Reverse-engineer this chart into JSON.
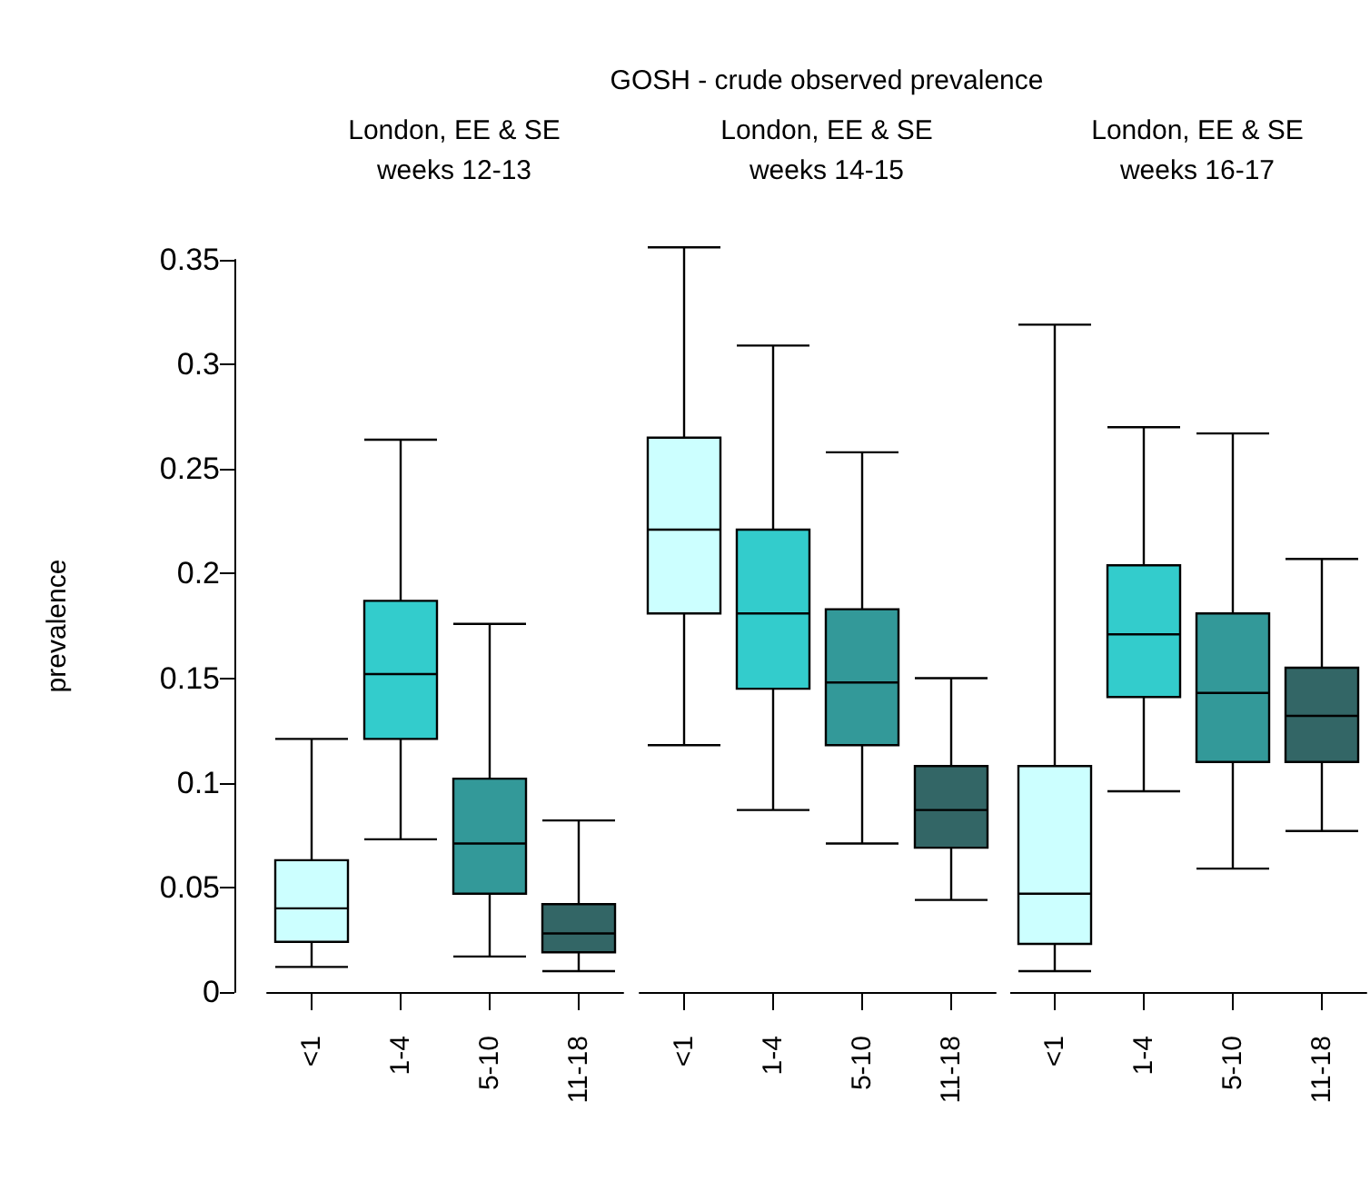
{
  "chart_data": [
    {
      "type": "box",
      "subtitle": "London, EE & SE\nweeks 12-13",
      "ylabel": "prevalence",
      "categories": [
        "<1",
        "1-4",
        "5-10",
        "11-18"
      ],
      "colors": [
        "#ccffff",
        "#33cccc",
        "#339999",
        "#336666"
      ],
      "boxes": [
        {
          "low": 0.012,
          "q1": 0.024,
          "median": 0.04,
          "q3": 0.063,
          "high": 0.121
        },
        {
          "low": 0.073,
          "q1": 0.121,
          "median": 0.152,
          "q3": 0.187,
          "high": 0.264
        },
        {
          "low": 0.017,
          "q1": 0.047,
          "median": 0.071,
          "q3": 0.102,
          "high": 0.176
        },
        {
          "low": 0.01,
          "q1": 0.019,
          "median": 0.028,
          "q3": 0.042,
          "high": 0.082
        }
      ],
      "ylim": [
        0,
        0.35
      ],
      "yticks": [
        0,
        0.05,
        0.1,
        0.15,
        0.2,
        0.25,
        0.3,
        0.35
      ]
    },
    {
      "type": "box",
      "title": "GOSH - crude observed prevalence",
      "subtitle": "London, EE & SE\nweeks 14-15",
      "categories": [
        "<1",
        "1-4",
        "5-10",
        "11-18"
      ],
      "colors": [
        "#ccffff",
        "#33cccc",
        "#339999",
        "#336666"
      ],
      "boxes": [
        {
          "low": 0.118,
          "q1": 0.181,
          "median": 0.221,
          "q3": 0.265,
          "high": 0.356
        },
        {
          "low": 0.087,
          "q1": 0.145,
          "median": 0.181,
          "q3": 0.221,
          "high": 0.309
        },
        {
          "low": 0.071,
          "q1": 0.118,
          "median": 0.148,
          "q3": 0.183,
          "high": 0.258
        },
        {
          "low": 0.044,
          "q1": 0.069,
          "median": 0.087,
          "q3": 0.108,
          "high": 0.15
        }
      ],
      "ylim": [
        0,
        0.35
      ],
      "tick_labels": "x"
    },
    {
      "type": "box",
      "subtitle": "London, EE & SE\nweeks 16-17",
      "categories": [
        "<1",
        "1-4",
        "5-10",
        "11-18"
      ],
      "colors": [
        "#ccffff",
        "#33cccc",
        "#339999",
        "#336666"
      ],
      "boxes": [
        {
          "low": 0.01,
          "q1": 0.023,
          "median": 0.047,
          "q3": 0.108,
          "high": 0.319
        },
        {
          "low": 0.096,
          "q1": 0.141,
          "median": 0.171,
          "q3": 0.204,
          "high": 0.27
        },
        {
          "low": 0.059,
          "q1": 0.11,
          "median": 0.143,
          "q3": 0.181,
          "high": 0.267
        },
        {
          "low": 0.077,
          "q1": 0.11,
          "median": 0.132,
          "q3": 0.155,
          "high": 0.207
        }
      ],
      "ylim": [
        0,
        0.35
      ],
      "tick_labels": "x"
    }
  ]
}
